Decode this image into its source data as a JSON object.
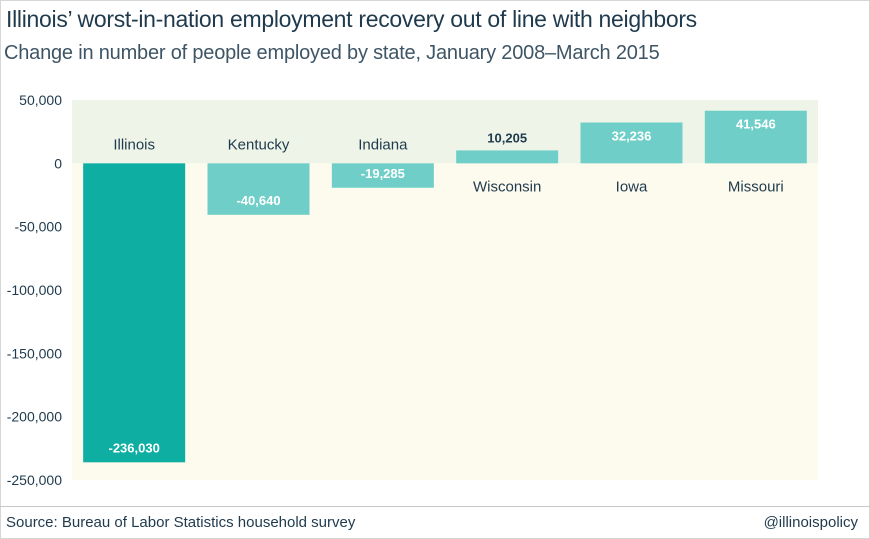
{
  "header": {
    "title": "Illinois’ worst-in-nation employment recovery out of line with neighbors",
    "subtitle": "Change in number of people employed by state, January 2008–March 2015"
  },
  "footer": {
    "source": "Source: Bureau of Labor Statistics household survey",
    "handle": "@illinoispolicy"
  },
  "colors": {
    "illinois_bar": "#0eaea3",
    "other_bar": "#6fcfc8",
    "positive_bg": "#eef5e8",
    "negative_bg": "#fdfaee",
    "axis_text": "#1f3a4d"
  },
  "chart_data": {
    "type": "bar",
    "title": "Illinois’ worst-in-nation employment recovery out of line with neighbors",
    "subtitle": "Change in number of people employed by state, January 2008–March 2015",
    "categories": [
      "Illinois",
      "Kentucky",
      "Indiana",
      "Wisconsin",
      "Iowa",
      "Missouri"
    ],
    "values": [
      -236030,
      -40640,
      -19285,
      10205,
      32236,
      41546
    ],
    "value_labels": [
      "-236,030",
      "-40,640",
      "-19,285",
      "10,205",
      "32,236",
      "41,546"
    ],
    "ylim": [
      -250000,
      50000
    ],
    "yticks": [
      50000,
      0,
      -50000,
      -100000,
      -150000,
      -200000,
      -250000
    ],
    "ytick_labels": [
      "50,000",
      "0",
      "-50,000",
      "-100,000",
      "-150,000",
      "-200,000",
      "-250,000"
    ],
    "xlabel": "",
    "ylabel": "",
    "grid": false,
    "legend": "none"
  }
}
